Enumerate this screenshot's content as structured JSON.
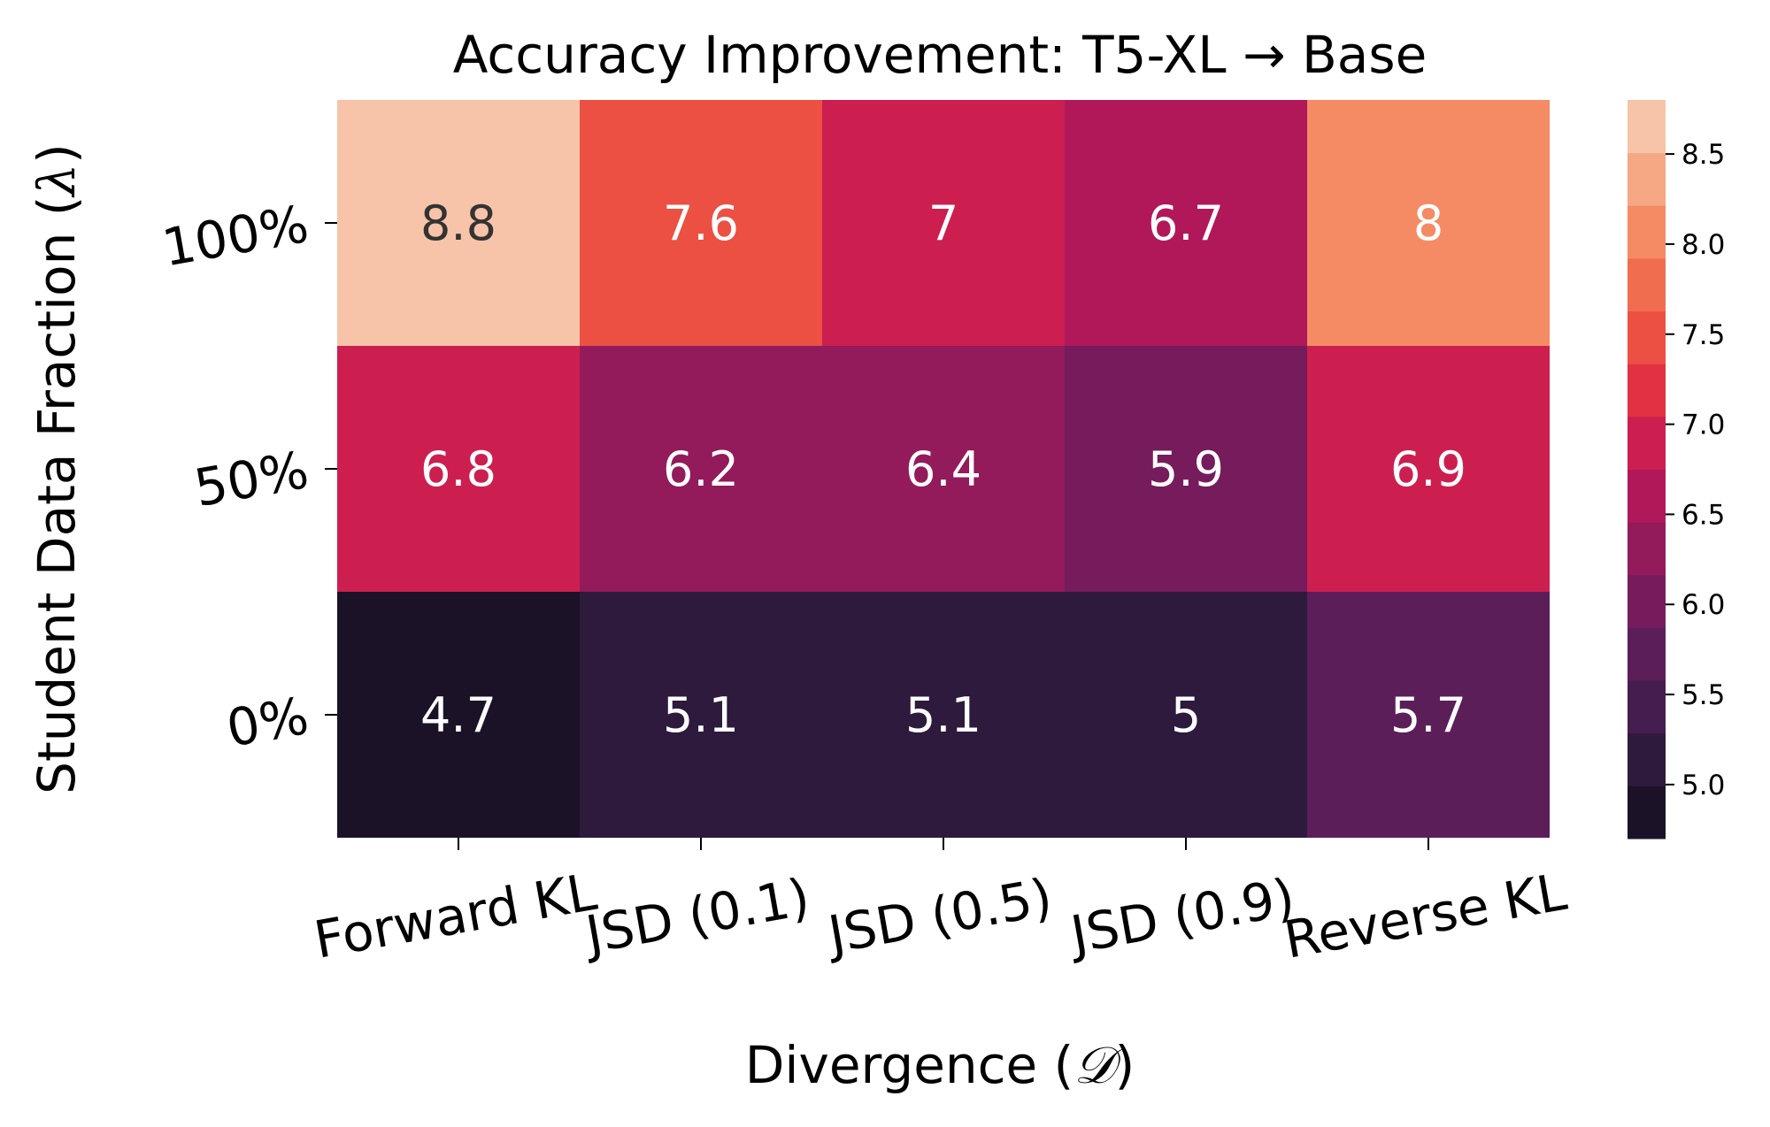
{
  "chart_data": {
    "type": "heatmap",
    "title": "Accuracy Improvement: T5-XL → Base",
    "xlabel_prefix": "Divergence (",
    "xlabel_symbol": "𝒟",
    "xlabel_suffix": ")",
    "ylabel_prefix": "Student Data Fraction (",
    "ylabel_symbol": "λ",
    "ylabel_suffix": ")",
    "x_categories": [
      "Forward KL",
      "JSD (0.1)",
      "JSD (0.5)",
      "JSD (0.9)",
      "Reverse KL"
    ],
    "y_categories": [
      "100%",
      "50%",
      "0%"
    ],
    "values": [
      [
        8.8,
        7.6,
        7,
        6.7,
        8
      ],
      [
        6.8,
        6.2,
        6.4,
        5.9,
        6.9
      ],
      [
        4.7,
        5.1,
        5.1,
        5,
        5.7
      ]
    ],
    "colorbar": {
      "ticks": [
        "5.0",
        "5.5",
        "6.0",
        "6.5",
        "7.0",
        "7.5",
        "8.0",
        "8.5"
      ],
      "tick_values": [
        5.0,
        5.5,
        6.0,
        6.5,
        7.0,
        7.5,
        8.0,
        8.5
      ],
      "range": [
        4.7,
        8.8
      ],
      "colors": [
        "#1c1228",
        "#2e1a3d",
        "#461d4f",
        "#5c1e59",
        "#761c5c",
        "#931a5b",
        "#b1185a",
        "#cc1f4f",
        "#e13142",
        "#eb5043",
        "#f06d4f",
        "#f48b65",
        "#f6a784",
        "#f7c4aa"
      ]
    },
    "grid": false,
    "legend": "none"
  }
}
